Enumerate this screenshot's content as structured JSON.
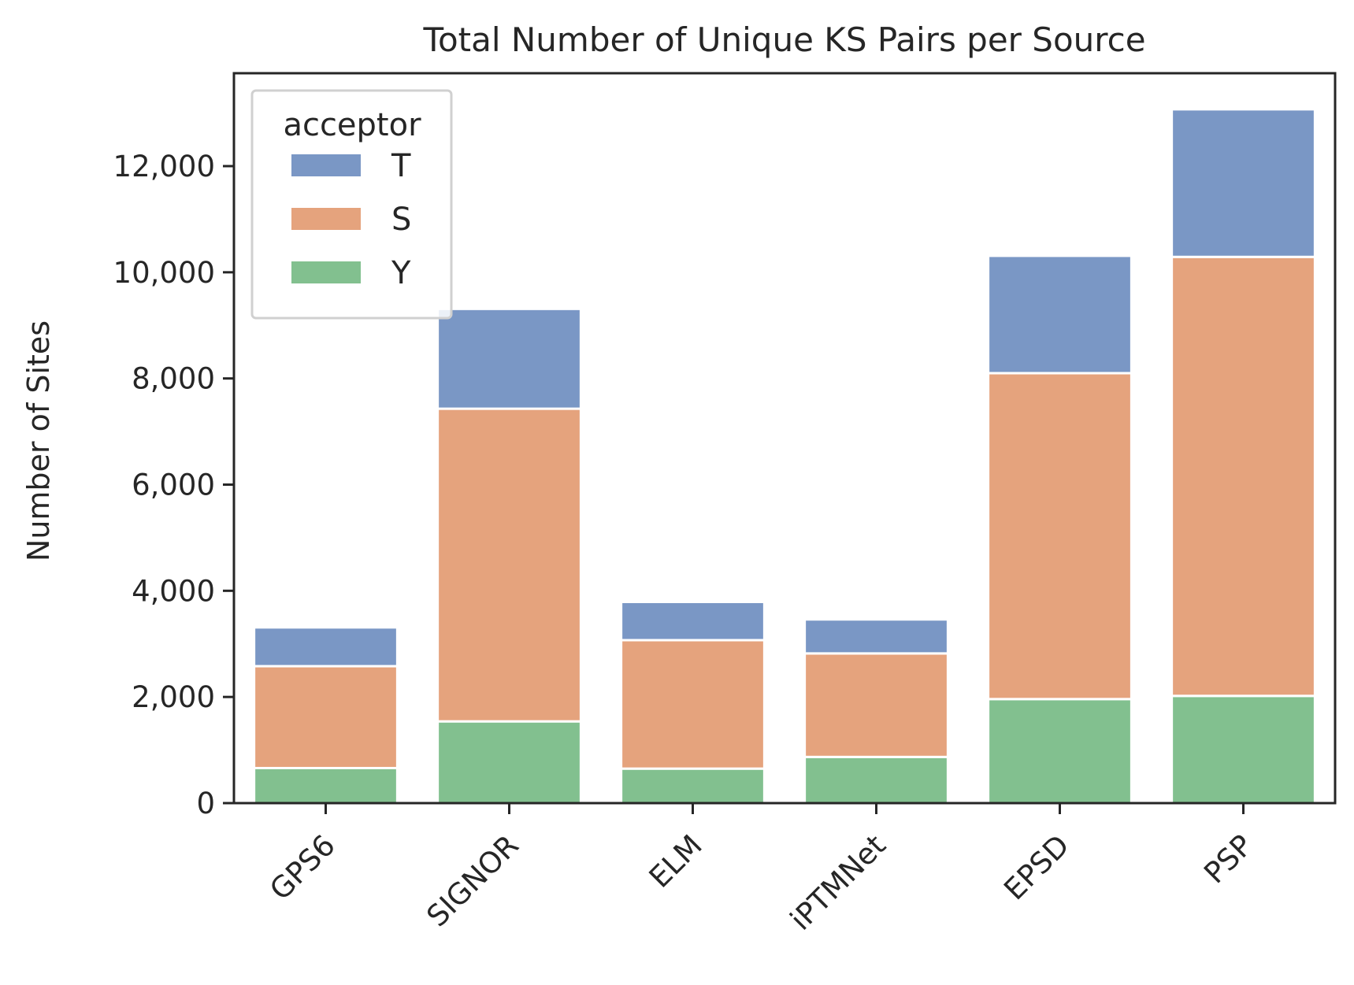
{
  "chart_data": {
    "type": "bar",
    "stacked": true,
    "title": "Total Number of Unique KS Pairs per Source",
    "xlabel": "",
    "ylabel": "Number of Sites",
    "categories": [
      "GPS6",
      "SIGNOR",
      "ELM",
      "iPTMNet",
      "EPSD",
      "PSP"
    ],
    "series": [
      {
        "name": "Y",
        "color": "#82c08f",
        "values": [
          660,
          1540,
          650,
          870,
          1960,
          2020
        ]
      },
      {
        "name": "S",
        "color": "#e5a37d",
        "values": [
          1920,
          5890,
          2420,
          1950,
          6140,
          8270
        ]
      },
      {
        "name": "T",
        "color": "#7a97c5",
        "values": [
          730,
          1880,
          720,
          640,
          2210,
          2780
        ]
      }
    ],
    "ylim": [
      0,
      13750
    ],
    "yticks": [
      0,
      2000,
      4000,
      6000,
      8000,
      10000,
      12000
    ],
    "ytick_labels": [
      "0",
      "2,000",
      "4,000",
      "6,000",
      "8,000",
      "10,000",
      "12,000"
    ],
    "grid": false,
    "legend": {
      "title": "acceptor",
      "placement": "top-left",
      "order": [
        "T",
        "S",
        "Y"
      ]
    }
  }
}
